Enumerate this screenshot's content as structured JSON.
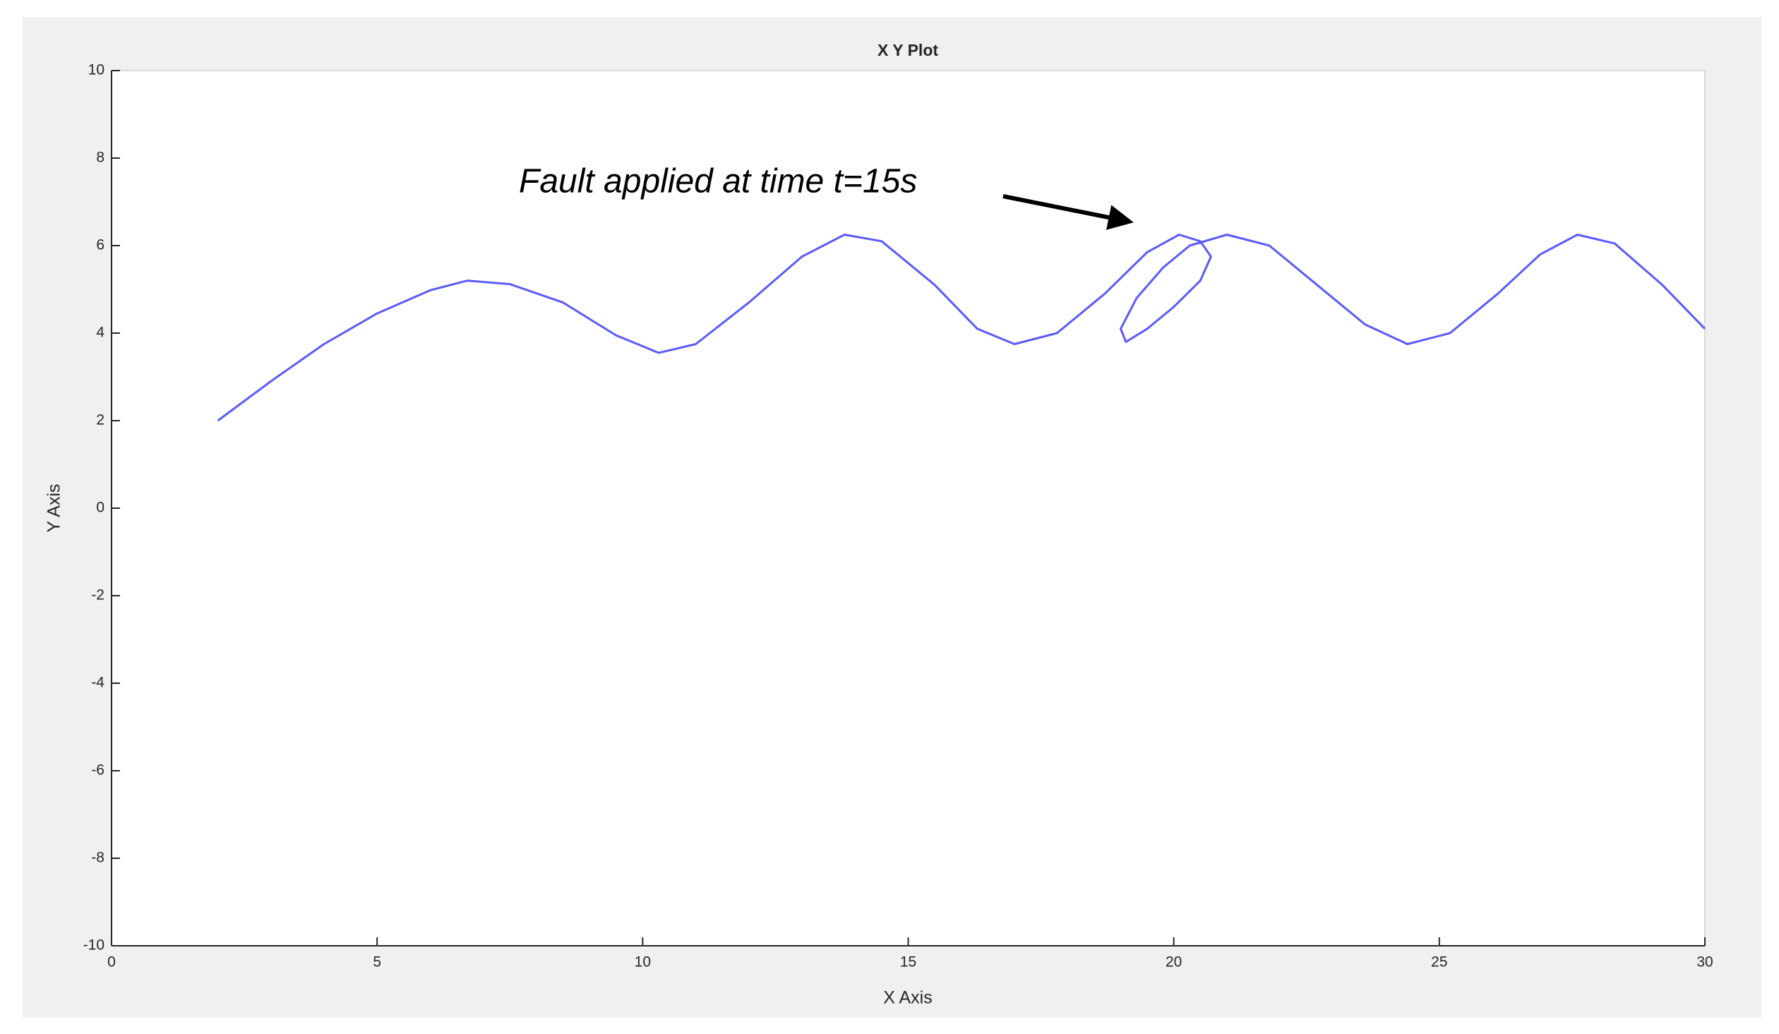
{
  "chart_data": {
    "type": "line",
    "title": "X Y Plot",
    "x_label": "X Axis",
    "y_label": "Y Axis",
    "annotation": "Fault applied at time t=15s",
    "color": "#5a5aff",
    "x": [
      2,
      3,
      4,
      5,
      6,
      6.7,
      7.5,
      8.5,
      9.5,
      10.3,
      11,
      12,
      13,
      13.8,
      14.5,
      15.5,
      16.3,
      17,
      17.8,
      18.7,
      19.5,
      20.1,
      20.5,
      20.7,
      20.5,
      20,
      19.5,
      19.1,
      19.0,
      19.3,
      19.8,
      20.3,
      21,
      21.8,
      22.7,
      23.6,
      24.4,
      25.2,
      26.1,
      26.9,
      27.6,
      28.3,
      29.2,
      30
    ],
    "values": [
      2,
      2.9,
      3.75,
      4.45,
      4.98,
      5.2,
      5.12,
      4.7,
      3.95,
      3.55,
      3.75,
      4.7,
      5.75,
      6.25,
      6.1,
      5.1,
      4.1,
      3.75,
      4.0,
      4.9,
      5.85,
      6.25,
      6.1,
      5.75,
      5.2,
      4.6,
      4.1,
      3.8,
      4.1,
      4.8,
      5.5,
      6.0,
      6.25,
      6.0,
      5.1,
      4.2,
      3.75,
      4.0,
      4.9,
      5.8,
      6.25,
      6.05,
      5.1,
      4.1
    ],
    "xlim": [
      0,
      30
    ],
    "ylim": [
      -10,
      10
    ],
    "xticks": [
      0,
      5,
      10,
      15,
      20,
      25,
      30
    ],
    "yticks": [
      -10,
      -8,
      -6,
      -4,
      -2,
      0,
      2,
      4,
      6,
      8,
      10
    ],
    "grid": false
  }
}
